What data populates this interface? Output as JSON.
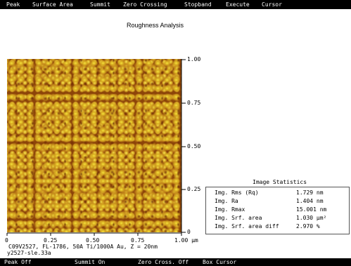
{
  "menu": {
    "items": [
      "Peak",
      "Surface Area",
      "Summit",
      "Zero Crossing",
      "Stopband",
      "Execute",
      "Cursor"
    ]
  },
  "title": "Roughness Analysis",
  "axes": {
    "x_ticks": [
      "0",
      "0.25",
      "0.50",
      "0.75",
      "1.00 µm"
    ],
    "y_ticks": [
      "1.00",
      "0.75",
      "0.50",
      "0.25",
      "0"
    ]
  },
  "image": {
    "colormap": [
      "#6e2c05",
      "#a0560d",
      "#cf9a20",
      "#f2e445"
    ]
  },
  "caption": "C09V2527, FL-1786, 50A Ti/1000A Au, Z = 20nm",
  "file_label": "y2527-sle.33a",
  "stats": {
    "title": "Image Statistics",
    "rows": [
      {
        "label": "Img. Rms (Rq)",
        "value": "1.729 nm"
      },
      {
        "label": "Img. Ra",
        "value": "1.404 nm"
      },
      {
        "label": "Img. Rmax",
        "value": "15.001 nm"
      },
      {
        "label": "Img. Srf. area",
        "value": "1.030 µm²"
      },
      {
        "label": "Img. Srf. area diff",
        "value": "2.970 %"
      }
    ]
  },
  "status": {
    "items": [
      "Peak Off",
      "Summit On",
      "Zero Cross. Off",
      "Box Cursor"
    ]
  }
}
